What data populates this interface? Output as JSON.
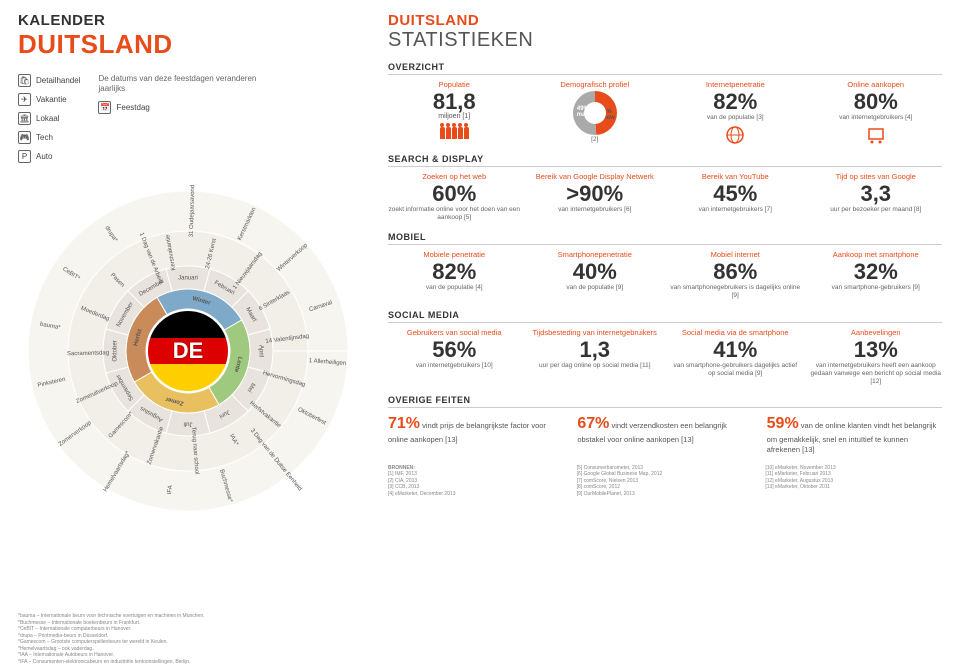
{
  "left": {
    "h1": "KALENDER",
    "h2": "DUITSLAND",
    "legend": {
      "cats": [
        {
          "icon": "🛍",
          "label": "Detailhandel"
        },
        {
          "icon": "✈",
          "label": "Vakantie"
        },
        {
          "icon": "🏛",
          "label": "Lokaal"
        },
        {
          "icon": "🎮",
          "label": "Tech"
        },
        {
          "icon": "P",
          "label": "Auto"
        }
      ],
      "note": "De datums van deze feestdagen veranderen jaarlijks",
      "feestdag_icon": "📅",
      "feestdag_label": "Feestdag"
    },
    "wheel": {
      "months": [
        "Januari",
        "Februari",
        "Maart",
        "April",
        "Mei",
        "Juni",
        "Juli",
        "Augustus",
        "September",
        "Oktober",
        "November",
        "December"
      ],
      "seasons": [
        "Winter",
        "Lente",
        "Zomer",
        "Herfst"
      ],
      "season_colors": [
        "#7fa9c9",
        "#9ec97f",
        "#e8c060",
        "#c98b5a"
      ],
      "ring_items": [
        "Kerstvakantie",
        "31 Oudejaarsavond",
        "24-26 Kerst",
        "Kerstmarkten",
        "1 Nieuwjaarsdag",
        "Winterverkoop",
        "6 Sinterklaas",
        "Carnaval",
        "14 Valentijnsdag",
        "1 Allerheiligen",
        "Hervormingsdag",
        "Oktoberfest",
        "Herfstvakantie",
        "3 Dag van de Duitse Eenheid",
        "IAA*",
        "Buchmesse*",
        "Terug naar school",
        "IFA",
        "Zomervakantie",
        "Hemelvaartsdag*",
        "Gamescom*",
        "Zomerverkoop",
        "Zomeruitverkoop",
        "Pinksteren",
        "Sacramentsdag",
        "bauma*",
        "Moederdag",
        "CeBIT*",
        "Pasen",
        "drupa*",
        "1 Dag van de Arbeid"
      ],
      "flag_colors": [
        "#000000",
        "#dd0000",
        "#ffce00"
      ],
      "center_code": "DE"
    },
    "footnotes": [
      "*bauma – Internationale beurs voor technische voertuigen en machines in München.",
      "*Buchmesse – Internationale boekenbeurs in Frankfurt.",
      "*CeBIT – Internationale computerbeurs in Hanover.",
      "*drupa – Printmedia-beurs in Düsseldorf.",
      "*Gamescom – Grootste computerspellenbeurs ter wereld in Keulen.",
      "*Hemelvaartsdag – ook vaderdag.",
      "*IAA – Internationale Autobeurs in Hanover.",
      "*IFA – Consumenten-elektronicabeurs en industriële tentoonstellingen, Berlijn."
    ]
  },
  "right": {
    "h1": "DUITSLAND",
    "h2": "STATISTIEKEN",
    "overzicht": {
      "title": "OVERZICHT",
      "stats": [
        {
          "label": "Populatie",
          "val": "81,8",
          "unit": "miljoen [1]",
          "icon": "people"
        },
        {
          "label": "Demografisch profiel",
          "type": "pie",
          "man": "49%",
          "man_l": "man",
          "vrouw": "51%",
          "vrouw_l": "vrouw",
          "ref": "[2]"
        },
        {
          "label": "Internetpenetratie",
          "val": "82%",
          "sub": "van de populatie [3]",
          "icon": "globe"
        },
        {
          "label": "Online aankopen",
          "val": "80%",
          "sub": "van internetgebruikers [4]",
          "icon": "cart"
        }
      ]
    },
    "search": {
      "title": "SEARCH & DISPLAY",
      "stats": [
        {
          "label": "Zoeken op het web",
          "val": "60%",
          "sub": "zoekt informatie online voor het doen van een aankoop [5]"
        },
        {
          "label": "Bereik van Google Display Netwerk",
          "val": ">90%",
          "sub": "van internetgebruikers [6]"
        },
        {
          "label": "Bereik van YouTube",
          "val": "45%",
          "sub": "van internetgebruikers [7]"
        },
        {
          "label": "Tijd op sites van Google",
          "val": "3,3",
          "sub": "uur per bezoeker per maand [8]"
        }
      ]
    },
    "mobiel": {
      "title": "MOBIEL",
      "stats": [
        {
          "label": "Mobiele penetratie",
          "val": "82%",
          "sub": "van de populatie [4]"
        },
        {
          "label": "Smartphonepenetratie",
          "val": "40%",
          "sub": "van de populatie [9]"
        },
        {
          "label": "Mobiel internet",
          "val": "86%",
          "sub": "van smartphonegebruikers is dagelijks online [9]"
        },
        {
          "label": "Aankoop met smartphone",
          "val": "32%",
          "sub": "van smartphone-gebruikers [9]"
        }
      ]
    },
    "social": {
      "title": "SOCIAL MEDIA",
      "stats": [
        {
          "label": "Gebruikers van social media",
          "val": "56%",
          "sub": "van internetgebruikers [10]"
        },
        {
          "label": "Tijdsbesteding van internetgebruikers",
          "val": "1,3",
          "sub": "uur per dag online op social media [11]"
        },
        {
          "label": "Social media via de smartphone",
          "val": "41%",
          "sub": "van smartphone-gebruikers dagelijks actief op social media [9]"
        },
        {
          "label": "Aanbevelingen",
          "val": "13%",
          "sub": "van internetgebruikers heeft een aankoop gedaan vanwege een bericht op social media [12]"
        }
      ]
    },
    "overige": {
      "title": "OVERIGE FEITEN",
      "facts": [
        {
          "pct": "71%",
          "text": " vindt prijs de belangrijkste factor voor online aankopen [13]"
        },
        {
          "pct": "67%",
          "text": " vindt verzendkosten een belangrijk obstakel voor online aankopen [13]"
        },
        {
          "pct": "59%",
          "text": " van de online klanten vindt het belangrijk om gemakkelijk, snel en intuïtief te kunnen afrekenen [13]"
        }
      ]
    },
    "sources": {
      "label": "BRONNEN:",
      "items": [
        "[1] IMF, 2013",
        "[2] CIA, 2013",
        "[3] CCB, 2013",
        "[4] eMarketer, December 2013",
        "[5] Consumerbarometer, 2013",
        "[6] Google Global Business Map, 2012",
        "[7] comScore, Nielsen 2013",
        "[8] comScore, 2012",
        "[9] OurMobilePlanet, 2013",
        "[10] eMarketer, November 2013",
        "[11] eMarketer, Februari 2013",
        "[12] eMarketer, Augustus 2013",
        "[13] eMarketer, Oktober 2011"
      ]
    }
  }
}
